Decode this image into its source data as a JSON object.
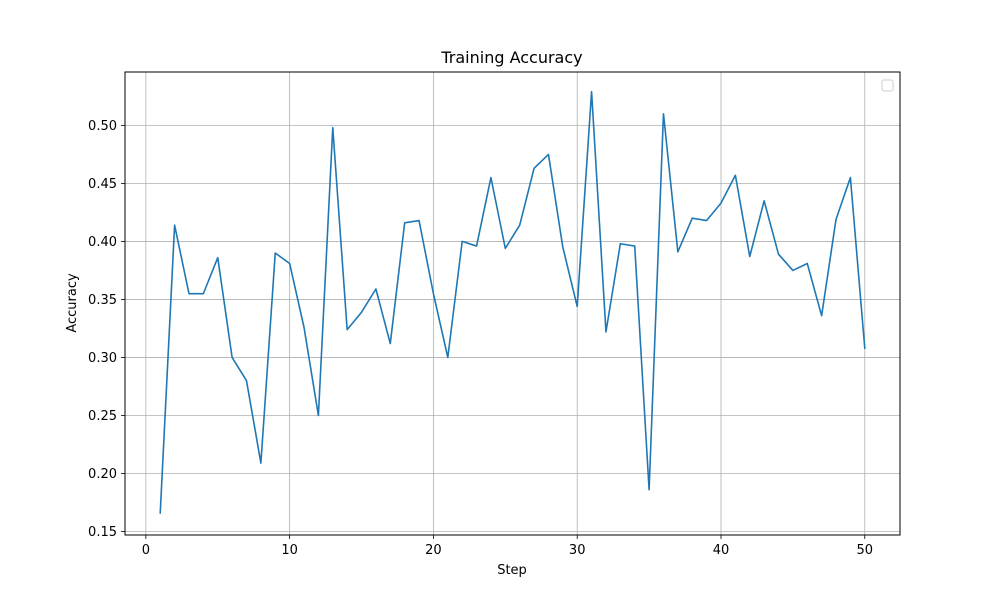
{
  "chart_data": {
    "type": "line",
    "title": "Training Accuracy",
    "xlabel": "Step",
    "ylabel": "Accuracy",
    "xlim": [
      -1.45,
      52.45
    ],
    "ylim": [
      0.147,
      0.546
    ],
    "xticks": [
      0,
      10,
      20,
      30,
      40,
      50
    ],
    "yticks": [
      0.15,
      0.2,
      0.25,
      0.3,
      0.35,
      0.4,
      0.45,
      0.5
    ],
    "grid": true,
    "legend": "top-right",
    "series": [
      {
        "color": "#1f77b4",
        "x": [
          1,
          2,
          3,
          4,
          5,
          6,
          7,
          8,
          9,
          10,
          11,
          12,
          13,
          14,
          15,
          16,
          17,
          18,
          19,
          20,
          21,
          22,
          23,
          24,
          25,
          26,
          27,
          28,
          29,
          30,
          31,
          32,
          33,
          34,
          35,
          36,
          37,
          38,
          39,
          40,
          41,
          42,
          43,
          44,
          45,
          46,
          47,
          48,
          49,
          50
        ],
        "y": [
          0.166,
          0.414,
          0.355,
          0.355,
          0.386,
          0.3,
          0.28,
          0.209,
          0.39,
          0.381,
          0.326,
          0.25,
          0.498,
          0.324,
          0.339,
          0.359,
          0.312,
          0.416,
          0.418,
          0.355,
          0.3,
          0.4,
          0.396,
          0.455,
          0.394,
          0.414,
          0.463,
          0.475,
          0.395,
          0.344,
          0.529,
          0.322,
          0.398,
          0.396,
          0.186,
          0.51,
          0.391,
          0.42,
          0.418,
          0.433,
          0.457,
          0.387,
          0.435,
          0.389,
          0.375,
          0.381,
          0.336,
          0.419,
          0.455,
          0.308
        ]
      }
    ]
  }
}
